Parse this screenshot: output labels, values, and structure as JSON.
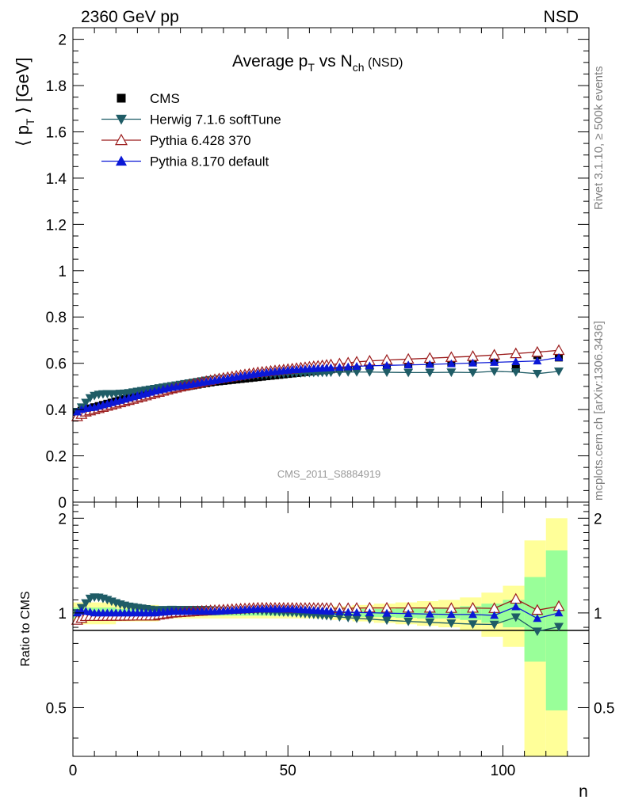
{
  "header": {
    "left_label": "2360 GeV pp",
    "right_label": "NSD"
  },
  "side_labels": {
    "rivet": "Rivet 3.1.10, ≥ 500k events",
    "mcplots": "mcplots.cern.ch [arXiv:1306.3436]"
  },
  "watermark": "CMS_2011_S8884919",
  "chart_data": [
    {
      "type": "line",
      "title": "Average p_T vs N_ch (NSD)",
      "ylabel": "⟨ p_T ⟩ [GeV]",
      "xlabel": "n",
      "xlim": [
        0,
        120
      ],
      "ylim": [
        0,
        2.05
      ],
      "yticks": [
        0,
        0.2,
        0.4,
        0.6,
        0.8,
        1,
        1.2,
        1.4,
        1.6,
        1.8,
        2
      ],
      "xticks": [
        0,
        50,
        100
      ],
      "grid": false,
      "legend_position": "top-left",
      "colors": {
        "cms": "#000000",
        "herwig": "#1f5c66",
        "pythia6": "#9b1b1b",
        "pythia8": "#0b18d6"
      },
      "x": [
        1,
        2,
        3,
        4,
        5,
        6,
        7,
        8,
        9,
        10,
        11,
        12,
        13,
        14,
        15,
        16,
        17,
        18,
        19,
        20,
        21,
        22,
        23,
        24,
        25,
        26,
        27,
        28,
        29,
        30,
        31,
        32,
        33,
        34,
        35,
        36,
        37,
        38,
        39,
        40,
        41,
        42,
        43,
        44,
        45,
        46,
        47,
        48,
        49,
        50,
        51,
        52,
        53,
        54,
        55,
        56,
        57,
        58,
        59,
        60,
        62,
        64,
        66,
        69,
        73,
        78,
        83,
        88,
        93,
        98,
        103,
        108,
        113
      ],
      "series": [
        {
          "name": "CMS",
          "key": "cms",
          "marker": "square",
          "values": [
            0.39,
            0.395,
            0.4,
            0.405,
            0.41,
            0.415,
            0.42,
            0.425,
            0.43,
            0.435,
            0.44,
            0.445,
            0.45,
            0.455,
            0.46,
            0.465,
            0.47,
            0.475,
            0.48,
            0.482,
            0.485,
            0.488,
            0.49,
            0.493,
            0.496,
            0.499,
            0.502,
            0.505,
            0.508,
            0.511,
            0.514,
            0.517,
            0.52,
            0.522,
            0.524,
            0.526,
            0.528,
            0.53,
            0.532,
            0.534,
            0.536,
            0.538,
            0.54,
            0.542,
            0.544,
            0.546,
            0.548,
            0.55,
            0.552,
            0.554,
            0.556,
            0.558,
            0.56,
            0.562,
            0.564,
            0.566,
            0.568,
            0.57,
            0.572,
            0.574,
            0.578,
            0.582,
            0.585,
            0.588,
            0.592,
            0.596,
            0.6,
            0.605,
            0.608,
            0.615,
            0.58,
            0.635,
            0.625
          ]
        },
        {
          "name": "Herwig 7.1.6 softTune",
          "key": "herwig",
          "marker": "triangle-down",
          "values": [
            0.39,
            0.41,
            0.43,
            0.45,
            0.46,
            0.465,
            0.467,
            0.468,
            0.468,
            0.468,
            0.469,
            0.47,
            0.472,
            0.475,
            0.478,
            0.481,
            0.484,
            0.487,
            0.49,
            0.493,
            0.496,
            0.499,
            0.502,
            0.505,
            0.508,
            0.511,
            0.514,
            0.517,
            0.52,
            0.523,
            0.526,
            0.528,
            0.53,
            0.532,
            0.534,
            0.536,
            0.538,
            0.54,
            0.542,
            0.544,
            0.546,
            0.548,
            0.549,
            0.55,
            0.551,
            0.552,
            0.553,
            0.554,
            0.555,
            0.556,
            0.557,
            0.558,
            0.558,
            0.559,
            0.559,
            0.56,
            0.56,
            0.56,
            0.56,
            0.561,
            0.561,
            0.562,
            0.562,
            0.562,
            0.561,
            0.56,
            0.56,
            0.561,
            0.56,
            0.565,
            0.562,
            0.555,
            0.565
          ]
        },
        {
          "name": "Pythia 6.428 370",
          "key": "pythia6",
          "marker": "triangle-up-open",
          "values": [
            0.37,
            0.38,
            0.39,
            0.395,
            0.4,
            0.405,
            0.41,
            0.415,
            0.42,
            0.425,
            0.43,
            0.435,
            0.44,
            0.445,
            0.45,
            0.455,
            0.46,
            0.465,
            0.47,
            0.475,
            0.48,
            0.485,
            0.49,
            0.494,
            0.498,
            0.502,
            0.506,
            0.51,
            0.514,
            0.518,
            0.522,
            0.526,
            0.53,
            0.533,
            0.536,
            0.539,
            0.542,
            0.545,
            0.548,
            0.551,
            0.554,
            0.557,
            0.56,
            0.562,
            0.564,
            0.566,
            0.568,
            0.57,
            0.572,
            0.574,
            0.576,
            0.578,
            0.58,
            0.582,
            0.584,
            0.586,
            0.588,
            0.59,
            0.592,
            0.594,
            0.598,
            0.602,
            0.606,
            0.61,
            0.614,
            0.618,
            0.622,
            0.626,
            0.63,
            0.636,
            0.642,
            0.648,
            0.656
          ]
        },
        {
          "name": "Pythia 8.170 default",
          "key": "pythia8",
          "marker": "triangle-up",
          "values": [
            0.39,
            0.4,
            0.405,
            0.408,
            0.41,
            0.415,
            0.42,
            0.425,
            0.43,
            0.435,
            0.44,
            0.445,
            0.45,
            0.455,
            0.46,
            0.465,
            0.47,
            0.475,
            0.48,
            0.484,
            0.488,
            0.492,
            0.496,
            0.499,
            0.502,
            0.505,
            0.508,
            0.511,
            0.514,
            0.517,
            0.52,
            0.523,
            0.526,
            0.529,
            0.532,
            0.535,
            0.538,
            0.541,
            0.544,
            0.547,
            0.55,
            0.553,
            0.556,
            0.558,
            0.56,
            0.562,
            0.564,
            0.566,
            0.568,
            0.57,
            0.572,
            0.573,
            0.574,
            0.575,
            0.576,
            0.577,
            0.578,
            0.579,
            0.58,
            0.581,
            0.583,
            0.585,
            0.587,
            0.589,
            0.591,
            0.593,
            0.595,
            0.598,
            0.601,
            0.604,
            0.607,
            0.61,
            0.625
          ]
        }
      ]
    },
    {
      "type": "line",
      "ylabel": "Ratio to CMS",
      "xlabel": "n",
      "xlim": [
        0,
        120
      ],
      "ylim": [
        0.35,
        2.25
      ],
      "log_y": true,
      "yticks_labeled": [
        0.5,
        1,
        2
      ],
      "xticks": [
        0,
        50,
        100
      ],
      "bands": {
        "inner_color": "#99ff99",
        "outer_color": "#ffff99",
        "x_edges": [
          0,
          10,
          20,
          30,
          40,
          50,
          60,
          65,
          70,
          75,
          80,
          85,
          90,
          95,
          100,
          105,
          110,
          115
        ],
        "inner_lo": [
          0.96,
          0.97,
          0.98,
          0.98,
          0.98,
          0.98,
          0.975,
          0.97,
          0.97,
          0.965,
          0.96,
          0.96,
          0.95,
          0.93,
          0.9,
          0.7,
          0.49
        ],
        "inner_hi": [
          1.04,
          1.03,
          1.02,
          1.02,
          1.02,
          1.02,
          1.025,
          1.03,
          1.03,
          1.035,
          1.04,
          1.04,
          1.05,
          1.07,
          1.1,
          1.3,
          1.58
        ],
        "outer_lo": [
          0.92,
          0.94,
          0.96,
          0.96,
          0.96,
          0.96,
          0.95,
          0.94,
          0.93,
          0.92,
          0.91,
          0.9,
          0.88,
          0.84,
          0.78,
          0.35,
          0.35
        ],
        "outer_hi": [
          1.08,
          1.06,
          1.04,
          1.04,
          1.04,
          1.04,
          1.05,
          1.06,
          1.07,
          1.08,
          1.09,
          1.1,
          1.12,
          1.16,
          1.22,
          1.7,
          2.0
        ]
      }
    }
  ]
}
